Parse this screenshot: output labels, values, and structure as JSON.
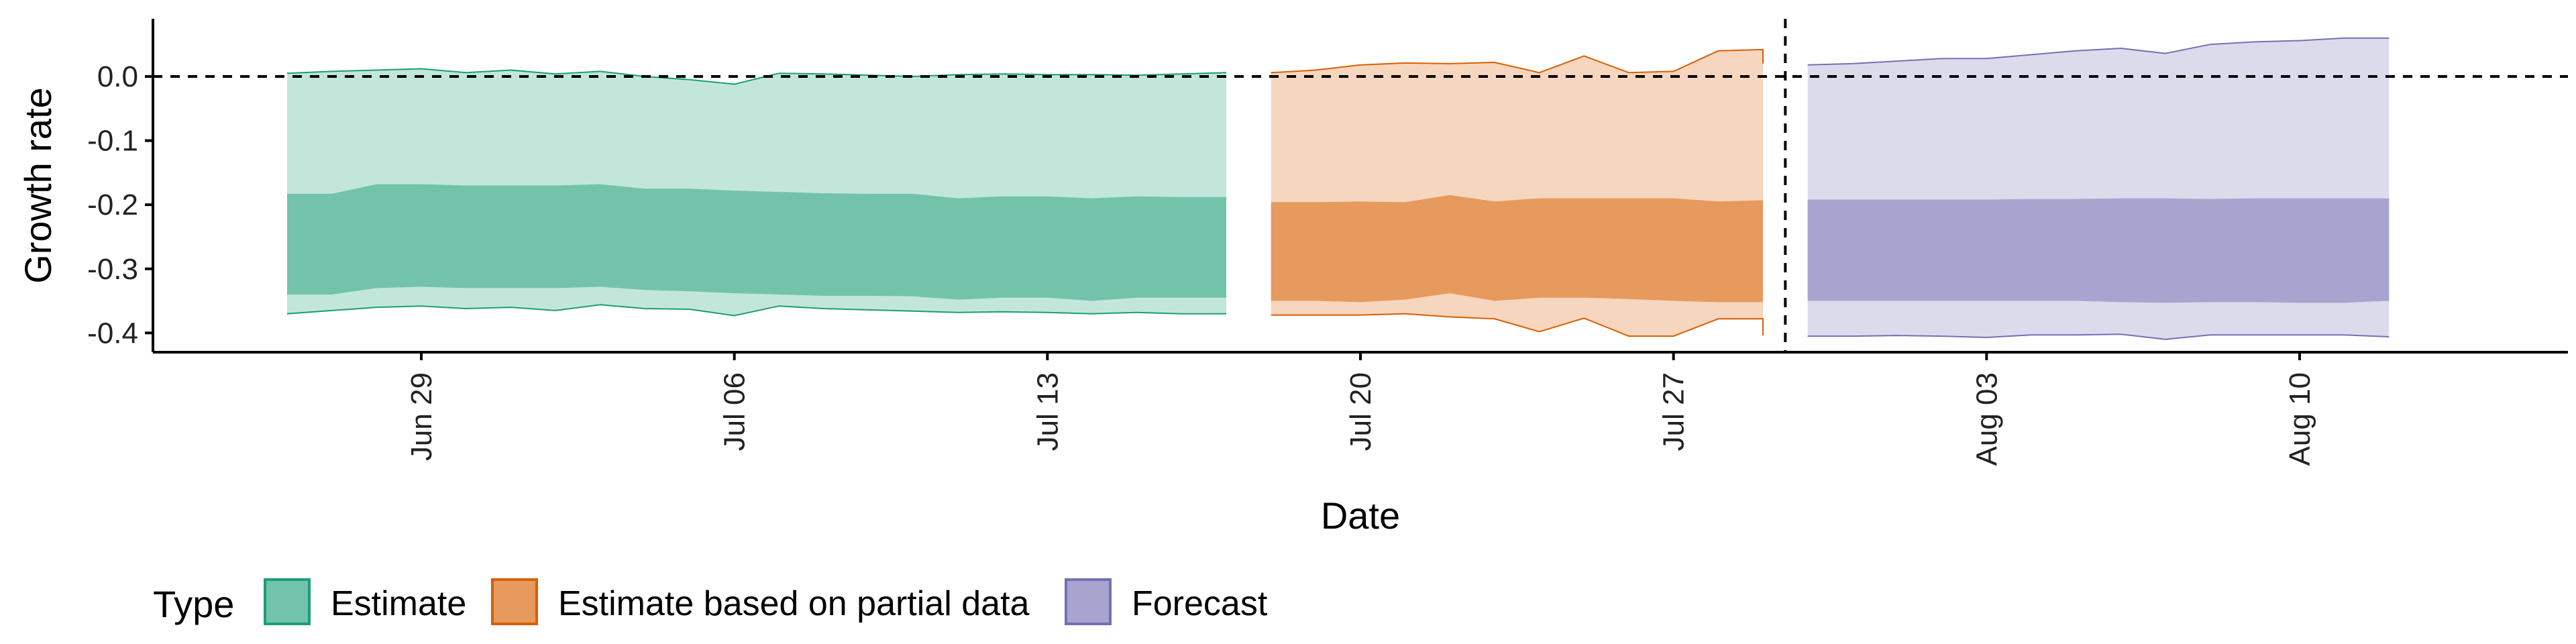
{
  "chart_data": {
    "type": "area",
    "xlabel": "Date",
    "ylabel": "Growth rate",
    "ylim": [
      -0.43,
      0.09
    ],
    "xlim": [
      "2021-06-23",
      "2021-08-16"
    ],
    "y_ticks": [
      0.0,
      -0.1,
      -0.2,
      -0.3,
      -0.4
    ],
    "y_tick_labels": [
      "0.0",
      "-0.1",
      "-0.2",
      "-0.3",
      "-0.4"
    ],
    "x_ticks": [
      "2021-06-29",
      "2021-07-06",
      "2021-07-13",
      "2021-07-20",
      "2021-07-27",
      "2021-08-03",
      "2021-08-10"
    ],
    "x_tick_labels": [
      "Jun 29",
      "Jul 06",
      "Jul 13",
      "Jul 20",
      "Jul 27",
      "Aug 03",
      "Aug 10"
    ],
    "reference_lines": [
      {
        "axis": "y",
        "value": 0,
        "style": "dashed"
      },
      {
        "axis": "x",
        "value": "2021-07-29",
        "style": "dashed"
      }
    ],
    "legend_title": "Type",
    "legend_position": "bottom-left",
    "series": [
      {
        "name": "Estimate",
        "fill": "#72C3A9",
        "fill_outer": "#C3E6DB",
        "stroke": "#1B9E77",
        "x": [
          "2021-06-26",
          "2021-06-27",
          "2021-06-28",
          "2021-06-29",
          "2021-06-30",
          "2021-07-01",
          "2021-07-02",
          "2021-07-03",
          "2021-07-04",
          "2021-07-05",
          "2021-07-06",
          "2021-07-07",
          "2021-07-08",
          "2021-07-09",
          "2021-07-10",
          "2021-07-11",
          "2021-07-12",
          "2021-07-13",
          "2021-07-14",
          "2021-07-15",
          "2021-07-16",
          "2021-07-17"
        ],
        "inner_upper": [
          -0.183,
          -0.183,
          -0.168,
          -0.168,
          -0.17,
          -0.17,
          -0.17,
          -0.168,
          -0.175,
          -0.175,
          -0.178,
          -0.18,
          -0.182,
          -0.183,
          -0.183,
          -0.19,
          -0.187,
          -0.187,
          -0.19,
          -0.187,
          -0.188,
          -0.188
        ],
        "inner_lower": [
          -0.34,
          -0.34,
          -0.33,
          -0.328,
          -0.33,
          -0.33,
          -0.33,
          -0.328,
          -0.333,
          -0.335,
          -0.338,
          -0.34,
          -0.342,
          -0.342,
          -0.343,
          -0.348,
          -0.345,
          -0.345,
          -0.35,
          -0.345,
          -0.345,
          -0.345
        ],
        "outer_upper": [
          0.005,
          0.008,
          0.01,
          0.012,
          0.006,
          0.01,
          0.004,
          0.008,
          0.0,
          -0.005,
          -0.012,
          0.005,
          0.004,
          0.002,
          0.0,
          0.003,
          0.004,
          0.003,
          0.003,
          0.002,
          0.004,
          0.006
        ],
        "outer_lower": [
          -0.37,
          -0.365,
          -0.36,
          -0.358,
          -0.362,
          -0.36,
          -0.365,
          -0.356,
          -0.362,
          -0.363,
          -0.373,
          -0.358,
          -0.362,
          -0.364,
          -0.366,
          -0.368,
          -0.367,
          -0.368,
          -0.37,
          -0.368,
          -0.37,
          -0.37
        ]
      },
      {
        "name": "Estimate based on partial data",
        "fill": "#E69A5E",
        "fill_outer": "#F6D6BE",
        "stroke": "#D95F02",
        "x": [
          "2021-07-18",
          "2021-07-19",
          "2021-07-20",
          "2021-07-21",
          "2021-07-22",
          "2021-07-23",
          "2021-07-24",
          "2021-07-25",
          "2021-07-26",
          "2021-07-27",
          "2021-07-28",
          "2021-07-29"
        ],
        "inner_upper": [
          -0.196,
          -0.196,
          -0.195,
          -0.196,
          -0.185,
          -0.195,
          -0.19,
          -0.19,
          -0.19,
          -0.19,
          -0.195,
          -0.193
        ],
        "inner_lower": [
          -0.35,
          -0.35,
          -0.352,
          -0.348,
          -0.338,
          -0.35,
          -0.345,
          -0.345,
          -0.347,
          -0.35,
          -0.352,
          -0.352
        ],
        "outer_upper": [
          0.006,
          0.01,
          0.018,
          0.021,
          0.02,
          0.022,
          0.006,
          0.032,
          0.006,
          0.008,
          0.04,
          0.042,
          0.02
        ],
        "outer_lower": [
          -0.372,
          -0.372,
          -0.372,
          -0.37,
          -0.375,
          -0.378,
          -0.398,
          -0.377,
          -0.405,
          -0.405,
          -0.378,
          -0.378,
          -0.404
        ],
        "outer_x": [
          "2021-07-18",
          "2021-07-19",
          "2021-07-20",
          "2021-07-21",
          "2021-07-22",
          "2021-07-23",
          "2021-07-24",
          "2021-07-25",
          "2021-07-26",
          "2021-07-27",
          "2021-07-28",
          "2021-07-29",
          "2021-07-29"
        ]
      },
      {
        "name": "Forecast",
        "fill": "#A8A4D0",
        "fill_outer": "#DCDBEC",
        "stroke": "#7570B3",
        "x": [
          "2021-07-30",
          "2021-07-31",
          "2021-08-01",
          "2021-08-02",
          "2021-08-03",
          "2021-08-04",
          "2021-08-05",
          "2021-08-06",
          "2021-08-07",
          "2021-08-08",
          "2021-08-09",
          "2021-08-10",
          "2021-08-11",
          "2021-08-12"
        ],
        "inner_upper": [
          -0.192,
          -0.192,
          -0.192,
          -0.192,
          -0.192,
          -0.191,
          -0.191,
          -0.19,
          -0.19,
          -0.191,
          -0.19,
          -0.19,
          -0.19,
          -0.19
        ],
        "inner_lower": [
          -0.35,
          -0.35,
          -0.35,
          -0.35,
          -0.35,
          -0.35,
          -0.35,
          -0.352,
          -0.353,
          -0.352,
          -0.352,
          -0.353,
          -0.353,
          -0.35
        ],
        "outer_upper": [
          0.018,
          0.02,
          0.024,
          0.028,
          0.028,
          0.034,
          0.04,
          0.044,
          0.036,
          0.05,
          0.054,
          0.056,
          0.06,
          0.06
        ],
        "outer_lower": [
          -0.405,
          -0.405,
          -0.404,
          -0.405,
          -0.407,
          -0.403,
          -0.403,
          -0.402,
          -0.41,
          -0.403,
          -0.403,
          -0.403,
          -0.403,
          -0.406
        ]
      }
    ]
  }
}
